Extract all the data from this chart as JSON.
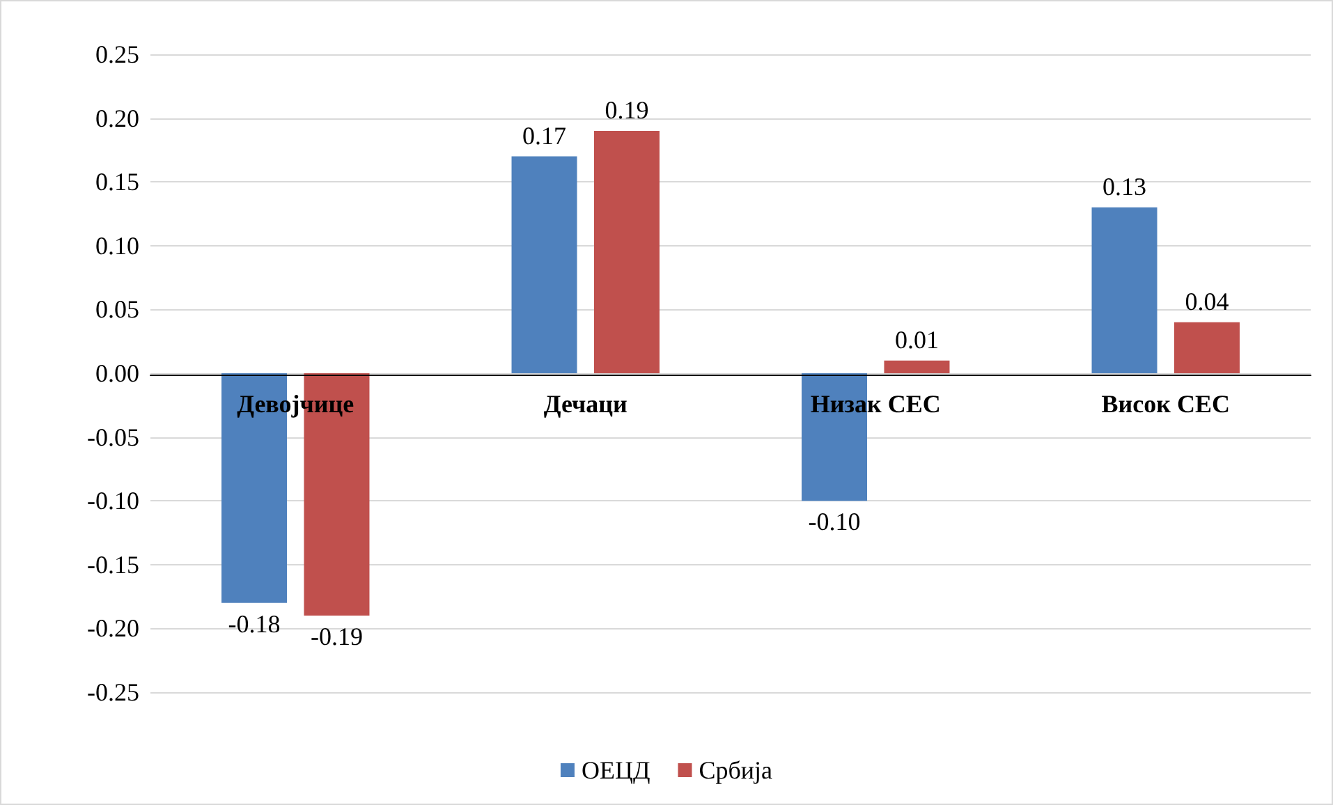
{
  "chart_data": {
    "type": "bar",
    "categories": [
      "Девојчице",
      "Дечаци",
      "Низак СЕС",
      "Висок СЕС"
    ],
    "series": [
      {
        "name": "ОЕЦД",
        "color": "#4f81bd",
        "values": [
          -0.18,
          0.17,
          -0.1,
          0.13
        ],
        "value_labels": [
          "-0.18",
          "0.17",
          "-0.10",
          "0.13"
        ]
      },
      {
        "name": "Србија",
        "color": "#c0504d",
        "values": [
          -0.19,
          0.19,
          0.01,
          0.04
        ],
        "value_labels": [
          "-0.19",
          "0.19",
          "0.01",
          "0.04"
        ]
      }
    ],
    "ylim": [
      -0.25,
      0.25
    ],
    "yticks": [
      {
        "value": -0.25,
        "label": "-0.25"
      },
      {
        "value": -0.2,
        "label": "-0.20"
      },
      {
        "value": -0.15,
        "label": "-0.15"
      },
      {
        "value": -0.1,
        "label": "-0.10"
      },
      {
        "value": -0.05,
        "label": "-0.05"
      },
      {
        "value": 0,
        "label": "0.00"
      },
      {
        "value": 0.05,
        "label": "0.05"
      },
      {
        "value": 0.1,
        "label": "0.10"
      },
      {
        "value": 0.15,
        "label": "0.15"
      },
      {
        "value": 0.2,
        "label": "0.20"
      },
      {
        "value": 0.25,
        "label": "0.25"
      }
    ],
    "grid": "y",
    "legend": "bottom"
  }
}
